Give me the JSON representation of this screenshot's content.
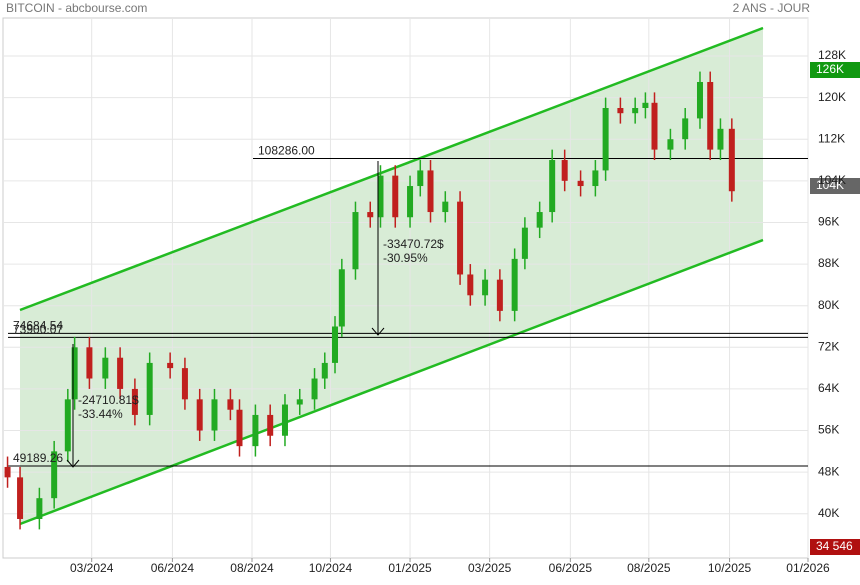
{
  "chart_data": {
    "type": "candlestick",
    "title": "BITCOIN - abcbourse.com",
    "subtitle": "2 ANS - JOUR",
    "x": [
      4,
      15,
      32,
      45,
      57,
      63,
      76,
      90,
      103,
      116,
      129,
      147,
      160,
      173,
      186,
      200,
      208,
      222,
      235,
      248,
      261,
      274,
      283,
      292,
      298,
      310,
      323,
      332,
      345,
      358,
      367,
      376,
      389,
      402,
      411,
      424,
      437,
      450,
      459,
      472,
      483,
      494,
      508,
      521,
      530,
      543,
      556,
      565,
      573,
      587,
      600,
      613,
      622,
      631,
      641
    ],
    "open": [
      49,
      47,
      39,
      43,
      52,
      62,
      72,
      66,
      70,
      64,
      59,
      69,
      68,
      62,
      56,
      62,
      60,
      53,
      59,
      55,
      61,
      62,
      66,
      69,
      76,
      87,
      98,
      97,
      105,
      97,
      103,
      106,
      98,
      100,
      86,
      82,
      85,
      79,
      89,
      95,
      98,
      108,
      104,
      103,
      106,
      118,
      117,
      118,
      119,
      110,
      112,
      116,
      123,
      110,
      114
    ],
    "high": [
      51,
      49,
      45,
      54,
      64,
      74,
      74,
      72,
      72,
      66,
      71,
      71,
      70,
      64,
      64,
      64,
      62,
      61,
      61,
      63,
      64,
      68,
      71,
      78,
      89,
      100,
      100,
      107,
      107,
      105,
      108,
      108,
      102,
      102,
      88,
      87,
      87,
      91,
      97,
      100,
      110,
      110,
      106,
      108,
      120,
      120,
      120,
      121,
      121,
      114,
      118,
      125,
      125,
      116,
      116
    ],
    "low": [
      45,
      37,
      37,
      41,
      50,
      60,
      64,
      64,
      62,
      57,
      57,
      66,
      60,
      54,
      54,
      58,
      51,
      51,
      53,
      53,
      59,
      60,
      64,
      67,
      74,
      85,
      95,
      95,
      95,
      95,
      101,
      96,
      96,
      84,
      80,
      80,
      77,
      77,
      87,
      93,
      96,
      102,
      101,
      101,
      104,
      115,
      115,
      116,
      108,
      108,
      110,
      114,
      108,
      108,
      100
    ],
    "close": [
      47,
      39,
      43,
      52,
      62,
      72,
      66,
      70,
      64,
      59,
      69,
      68,
      62,
      56,
      62,
      60,
      53,
      59,
      55,
      61,
      62,
      66,
      69,
      76,
      87,
      98,
      97,
      105,
      97,
      103,
      106,
      98,
      100,
      86,
      82,
      85,
      79,
      89,
      95,
      98,
      108,
      104,
      103,
      106,
      118,
      117,
      118,
      119,
      110,
      112,
      116,
      123,
      110,
      114,
      102
    ],
    "up_color": "#22aa22",
    "down_color": "#c0201e",
    "channel_color": "#22bb22",
    "xlim": [
      0,
      708
    ],
    "xticks": [
      {
        "value": 78,
        "label": "03/2024"
      },
      {
        "value": 149,
        "label": "06/2024"
      },
      {
        "value": 219,
        "label": "08/2024"
      },
      {
        "value": 288,
        "label": "10/2024"
      },
      {
        "value": 358,
        "label": "01/2025"
      },
      {
        "value": 428,
        "label": "03/2025"
      },
      {
        "value": 499,
        "label": "06/2025"
      },
      {
        "value": 568,
        "label": "08/2025"
      },
      {
        "value": 639,
        "label": "10/2025"
      },
      {
        "value": 708,
        "label": "01/2026"
      }
    ],
    "ylim": [
      31.5,
      135.3
    ],
    "yticks": [
      {
        "value": 40,
        "label": "40K"
      },
      {
        "value": 48,
        "label": "48K"
      },
      {
        "value": 56,
        "label": "56K"
      },
      {
        "value": 64,
        "label": "64K"
      },
      {
        "value": 72,
        "label": "72K"
      },
      {
        "value": 80,
        "label": "80K"
      },
      {
        "value": 88,
        "label": "88K"
      },
      {
        "value": 96,
        "label": "96K"
      },
      {
        "value": 104,
        "label": "104K"
      },
      {
        "value": 112,
        "label": "112K"
      },
      {
        "value": 120,
        "label": "120K"
      },
      {
        "value": 128,
        "label": "128K"
      }
    ],
    "grid": true,
    "levels": [
      {
        "value": 108.286,
        "label": "108286.00"
      },
      {
        "value": 74.68454,
        "label": "74684.54"
      },
      {
        "value": 73.90007,
        "label": "73900.07"
      },
      {
        "value": 49.18926,
        "label": "49189.26"
      }
    ],
    "measures": [
      [
        "-33470.72$",
        "-30.95%"
      ],
      [
        "-24710.81$",
        "-33.44%"
      ]
    ],
    "badges": [
      "126K",
      "104K",
      "34 546"
    ]
  }
}
